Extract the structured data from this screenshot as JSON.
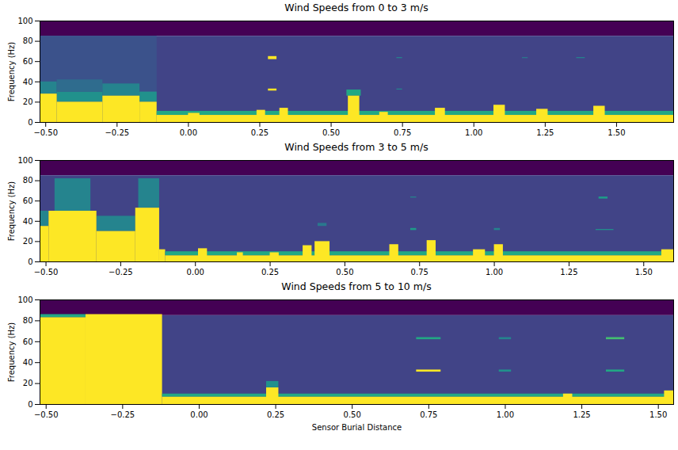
{
  "chart_data": [
    {
      "type": "heatmap",
      "title": "Wind Speeds from 0 to 3 m/s",
      "ylabel": "Frequency (Hz)",
      "xlim": [
        -0.52,
        1.7
      ],
      "ylim": [
        0,
        100
      ],
      "xticks": [
        {
          "value": -0.5,
          "label": "−0.50"
        },
        {
          "value": -0.25,
          "label": "−0.25"
        },
        {
          "value": 0,
          "label": "0.00"
        },
        {
          "value": 0.25,
          "label": "0.25"
        },
        {
          "value": 0.5,
          "label": "0.50"
        },
        {
          "value": 0.75,
          "label": "0.75"
        },
        {
          "value": 1,
          "label": "1.00"
        },
        {
          "value": 1.25,
          "label": "1.25"
        },
        {
          "value": 1.5,
          "label": "1.50"
        }
      ],
      "yticks": [
        0,
        20,
        40,
        60,
        80,
        100
      ],
      "cells": [
        [
          -0.52,
          1.7,
          85,
          100,
          0.0
        ],
        [
          -0.52,
          1.7,
          0,
          85,
          0.2
        ],
        [
          -0.52,
          -0.11,
          0,
          85,
          0.25
        ],
        [
          -0.52,
          -0.46,
          28,
          40,
          0.45
        ],
        [
          -0.46,
          -0.3,
          20,
          30,
          0.5
        ],
        [
          -0.46,
          -0.3,
          30,
          42,
          0.35
        ],
        [
          -0.3,
          -0.17,
          26,
          38,
          0.45
        ],
        [
          -0.17,
          -0.11,
          20,
          30,
          0.5
        ],
        [
          -0.52,
          -0.46,
          0,
          28,
          1.0
        ],
        [
          -0.46,
          -0.3,
          0,
          20,
          1.0
        ],
        [
          -0.3,
          -0.17,
          0,
          26,
          1.0
        ],
        [
          -0.17,
          -0.11,
          0,
          20,
          1.0
        ],
        [
          -0.11,
          1.7,
          7,
          11,
          0.6
        ],
        [
          -0.11,
          1.7,
          0,
          7,
          1.0
        ],
        [
          0.0,
          0.04,
          0,
          9,
          1.0
        ],
        [
          0.24,
          0.27,
          0,
          12,
          1.0
        ],
        [
          0.32,
          0.35,
          0,
          14,
          1.0
        ],
        [
          0.555,
          0.605,
          26,
          32,
          0.6
        ],
        [
          0.56,
          0.6,
          0,
          26,
          1.0
        ],
        [
          0.67,
          0.7,
          0,
          10,
          1.0
        ],
        [
          0.865,
          0.9,
          0,
          14,
          1.0
        ],
        [
          1.07,
          1.11,
          0,
          17,
          1.0
        ],
        [
          1.22,
          1.26,
          0,
          13,
          1.0
        ],
        [
          1.42,
          1.46,
          0,
          16,
          1.0
        ],
        [
          0.28,
          0.31,
          62,
          65,
          1.0
        ],
        [
          0.28,
          0.31,
          31,
          33,
          1.0
        ],
        [
          0.73,
          0.75,
          63,
          64,
          0.45
        ],
        [
          0.73,
          0.75,
          32,
          33,
          0.45
        ],
        [
          1.36,
          1.39,
          63,
          64,
          0.45
        ],
        [
          1.17,
          1.19,
          63,
          64,
          0.4
        ]
      ]
    },
    {
      "type": "heatmap",
      "title": "Wind Speeds from 3 to 5 m/s",
      "ylabel": "Frequency (Hz)",
      "xlim": [
        -0.52,
        1.6
      ],
      "ylim": [
        0,
        100
      ],
      "xticks": [
        {
          "value": -0.5,
          "label": "−0.50"
        },
        {
          "value": -0.25,
          "label": "−0.25"
        },
        {
          "value": 0,
          "label": "0.00"
        },
        {
          "value": 0.25,
          "label": "0.25"
        },
        {
          "value": 0.5,
          "label": "0.50"
        },
        {
          "value": 0.75,
          "label": "0.75"
        },
        {
          "value": 1,
          "label": "1.00"
        },
        {
          "value": 1.25,
          "label": "1.25"
        },
        {
          "value": 1.5,
          "label": "1.50"
        }
      ],
      "yticks": [
        0,
        20,
        40,
        60,
        80,
        100
      ],
      "cells": [
        [
          -0.52,
          1.6,
          85,
          100,
          0.0
        ],
        [
          -0.52,
          1.6,
          0,
          85,
          0.2
        ],
        [
          -0.52,
          -0.49,
          35,
          50,
          0.45
        ],
        [
          -0.47,
          -0.35,
          50,
          82,
          0.45
        ],
        [
          -0.33,
          -0.2,
          30,
          45,
          0.45
        ],
        [
          -0.19,
          -0.12,
          53,
          82,
          0.45
        ],
        [
          -0.52,
          -0.49,
          0,
          35,
          1.0
        ],
        [
          -0.49,
          -0.33,
          0,
          50,
          1.0
        ],
        [
          -0.33,
          -0.2,
          0,
          30,
          1.0
        ],
        [
          -0.2,
          -0.12,
          0,
          53,
          1.0
        ],
        [
          -0.12,
          -0.1,
          0,
          12,
          1.0
        ],
        [
          -0.1,
          1.6,
          6,
          10,
          0.6
        ],
        [
          -0.1,
          1.6,
          0,
          6,
          1.0
        ],
        [
          0.01,
          0.04,
          0,
          13,
          1.0
        ],
        [
          0.14,
          0.16,
          0,
          9,
          1.0
        ],
        [
          0.25,
          0.28,
          0,
          9,
          1.0
        ],
        [
          0.36,
          0.39,
          0,
          16,
          1.0
        ],
        [
          0.4,
          0.45,
          0,
          20,
          1.0
        ],
        [
          0.65,
          0.68,
          0,
          17,
          1.0
        ],
        [
          0.775,
          0.805,
          0,
          21,
          1.0
        ],
        [
          0.93,
          0.97,
          0,
          12,
          1.0
        ],
        [
          1.0,
          1.03,
          0,
          17,
          1.0
        ],
        [
          1.56,
          1.6,
          0,
          12,
          1.0
        ],
        [
          0.72,
          0.74,
          31,
          33,
          0.55
        ],
        [
          1.0,
          1.02,
          31,
          33,
          0.45
        ],
        [
          1.35,
          1.38,
          62,
          64,
          0.55
        ],
        [
          1.34,
          1.4,
          31,
          32,
          0.5
        ],
        [
          0.72,
          0.74,
          63,
          64,
          0.45
        ],
        [
          0.41,
          0.44,
          35,
          38,
          0.4
        ]
      ]
    },
    {
      "type": "heatmap",
      "title": "Wind Speeds from 5 to 10 m/s",
      "xlabel": "Sensor Burial Distance",
      "ylabel": "Frequency (Hz)",
      "xlim": [
        -0.52,
        1.55
      ],
      "ylim": [
        0,
        100
      ],
      "xticks": [
        {
          "value": -0.5,
          "label": "−0.50"
        },
        {
          "value": -0.25,
          "label": "−0.25"
        },
        {
          "value": 0,
          "label": "0.00"
        },
        {
          "value": 0.25,
          "label": "0.25"
        },
        {
          "value": 0.5,
          "label": "0.50"
        },
        {
          "value": 0.75,
          "label": "0.75"
        },
        {
          "value": 1,
          "label": "1.00"
        },
        {
          "value": 1.25,
          "label": "1.25"
        },
        {
          "value": 1.5,
          "label": "1.50"
        }
      ],
      "yticks": [
        0,
        20,
        40,
        60,
        80,
        100
      ],
      "cells": [
        [
          -0.52,
          1.55,
          85,
          100,
          0.0
        ],
        [
          -0.52,
          1.55,
          0,
          85,
          0.2
        ],
        [
          -0.52,
          -0.37,
          83,
          86,
          0.6
        ],
        [
          -0.52,
          -0.37,
          0,
          83,
          1.0
        ],
        [
          -0.37,
          -0.12,
          0,
          86,
          1.0
        ],
        [
          -0.12,
          1.55,
          7,
          10,
          0.6
        ],
        [
          -0.12,
          1.55,
          0,
          7,
          1.0
        ],
        [
          0.22,
          0.26,
          0,
          16,
          1.0
        ],
        [
          0.22,
          0.26,
          16,
          22,
          0.5
        ],
        [
          1.19,
          1.22,
          0,
          10,
          1.0
        ],
        [
          1.52,
          1.55,
          0,
          13,
          1.0
        ],
        [
          0.71,
          0.79,
          31,
          33,
          1.0
        ],
        [
          0.71,
          0.79,
          62,
          64,
          0.6
        ],
        [
          0.98,
          1.02,
          31,
          33,
          0.5
        ],
        [
          0.98,
          1.02,
          62,
          64,
          0.45
        ],
        [
          1.33,
          1.39,
          62,
          64,
          0.7
        ],
        [
          1.33,
          1.39,
          31,
          33,
          0.6
        ]
      ]
    }
  ]
}
